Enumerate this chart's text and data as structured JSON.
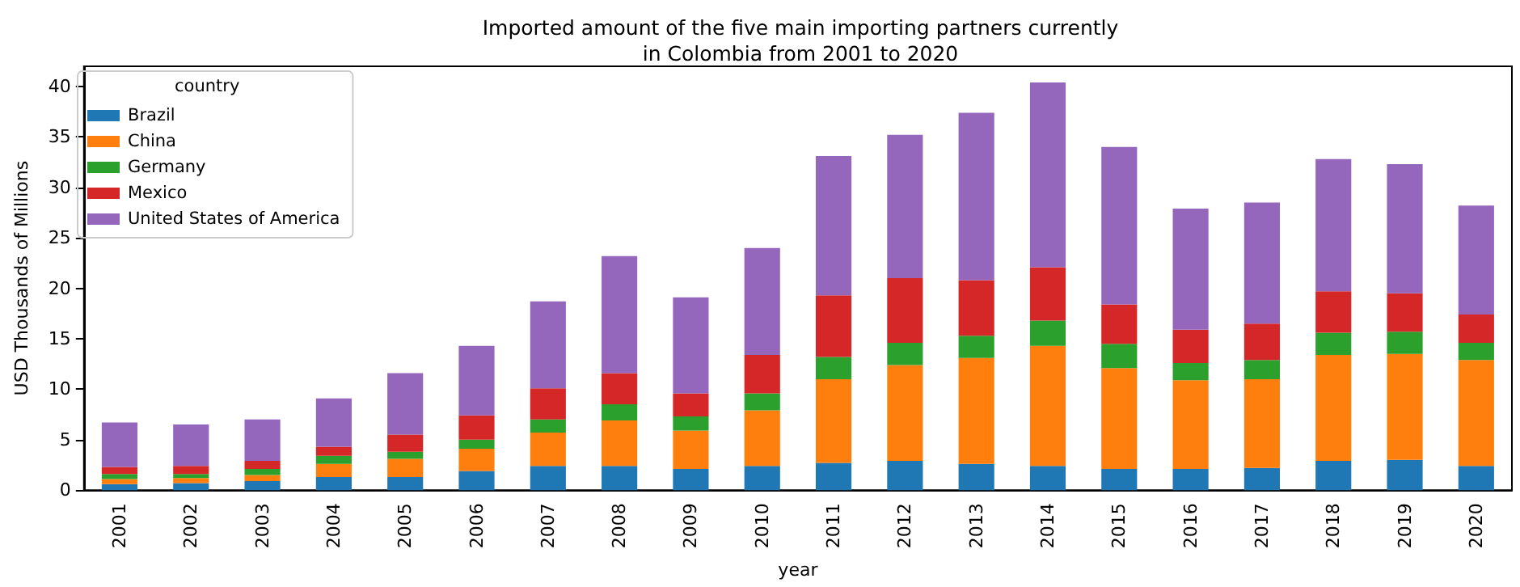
{
  "chart_data": {
    "type": "bar",
    "stacked": true,
    "title": "Imported amount of the five main importing partners currently\nin Colombia from 2001 to 2020",
    "xlabel": "year",
    "ylabel": "USD Thousands of Millions",
    "legend_title": "country",
    "legend": "top left",
    "categories": [
      "2001",
      "2002",
      "2003",
      "2004",
      "2005",
      "2006",
      "2007",
      "2008",
      "2009",
      "2010",
      "2011",
      "2012",
      "2013",
      "2014",
      "2015",
      "2016",
      "2017",
      "2018",
      "2019",
      "2020"
    ],
    "series": [
      {
        "name": "Brazil",
        "color": "#1f77b4",
        "values": [
          0.6,
          0.7,
          0.9,
          1.3,
          1.3,
          1.9,
          2.4,
          2.4,
          2.1,
          2.4,
          2.7,
          2.9,
          2.6,
          2.4,
          2.1,
          2.1,
          2.2,
          2.9,
          3.0,
          2.4
        ]
      },
      {
        "name": "China",
        "color": "#ff7f0e",
        "values": [
          0.5,
          0.5,
          0.6,
          1.3,
          1.8,
          2.2,
          3.3,
          4.5,
          3.8,
          5.5,
          8.3,
          9.5,
          10.5,
          11.9,
          10.0,
          8.8,
          8.8,
          10.5,
          10.5,
          10.5
        ]
      },
      {
        "name": "Germany",
        "color": "#2ca02c",
        "values": [
          0.5,
          0.4,
          0.6,
          0.8,
          0.7,
          0.9,
          1.3,
          1.6,
          1.4,
          1.7,
          2.2,
          2.2,
          2.2,
          2.5,
          2.4,
          1.7,
          1.9,
          2.2,
          2.2,
          1.7
        ]
      },
      {
        "name": "Mexico",
        "color": "#d62728",
        "values": [
          0.7,
          0.8,
          0.8,
          0.9,
          1.7,
          2.4,
          3.1,
          3.1,
          2.3,
          3.8,
          6.1,
          6.4,
          5.5,
          5.3,
          3.9,
          3.3,
          3.6,
          4.1,
          3.8,
          2.8
        ]
      },
      {
        "name": "United States of America",
        "color": "#9467bd",
        "values": [
          4.4,
          4.1,
          4.1,
          4.8,
          6.1,
          6.9,
          8.6,
          11.6,
          9.5,
          10.6,
          13.8,
          14.2,
          16.6,
          18.3,
          15.6,
          12.0,
          12.0,
          13.1,
          12.8,
          10.8
        ]
      }
    ],
    "ylim": [
      0,
      42
    ],
    "yticks": [
      0,
      5,
      10,
      15,
      20,
      25,
      30,
      35,
      40
    ]
  }
}
